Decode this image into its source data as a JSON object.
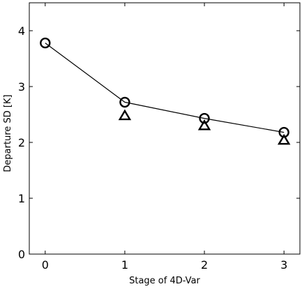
{
  "chart_data": {
    "type": "line",
    "xlabel": "Stage of 4D-Var",
    "ylabel": "Departure SD [K]",
    "xlim": [
      -0.2,
      3.2
    ],
    "ylim": [
      0,
      4.5
    ],
    "x_ticks": [
      "0",
      "1",
      "2",
      "3"
    ],
    "y_ticks": [
      "0",
      "1",
      "2",
      "3",
      "4"
    ],
    "grid": false,
    "series": [
      {
        "marker": "circle",
        "line": true,
        "color": "#000000",
        "x": [
          0,
          1,
          2,
          3
        ],
        "y": [
          3.78,
          2.72,
          2.43,
          2.18
        ]
      },
      {
        "marker": "triangle",
        "line": false,
        "color": "#000000",
        "x": [
          1,
          2,
          3
        ],
        "y": [
          2.47,
          2.29,
          2.03
        ]
      }
    ]
  }
}
